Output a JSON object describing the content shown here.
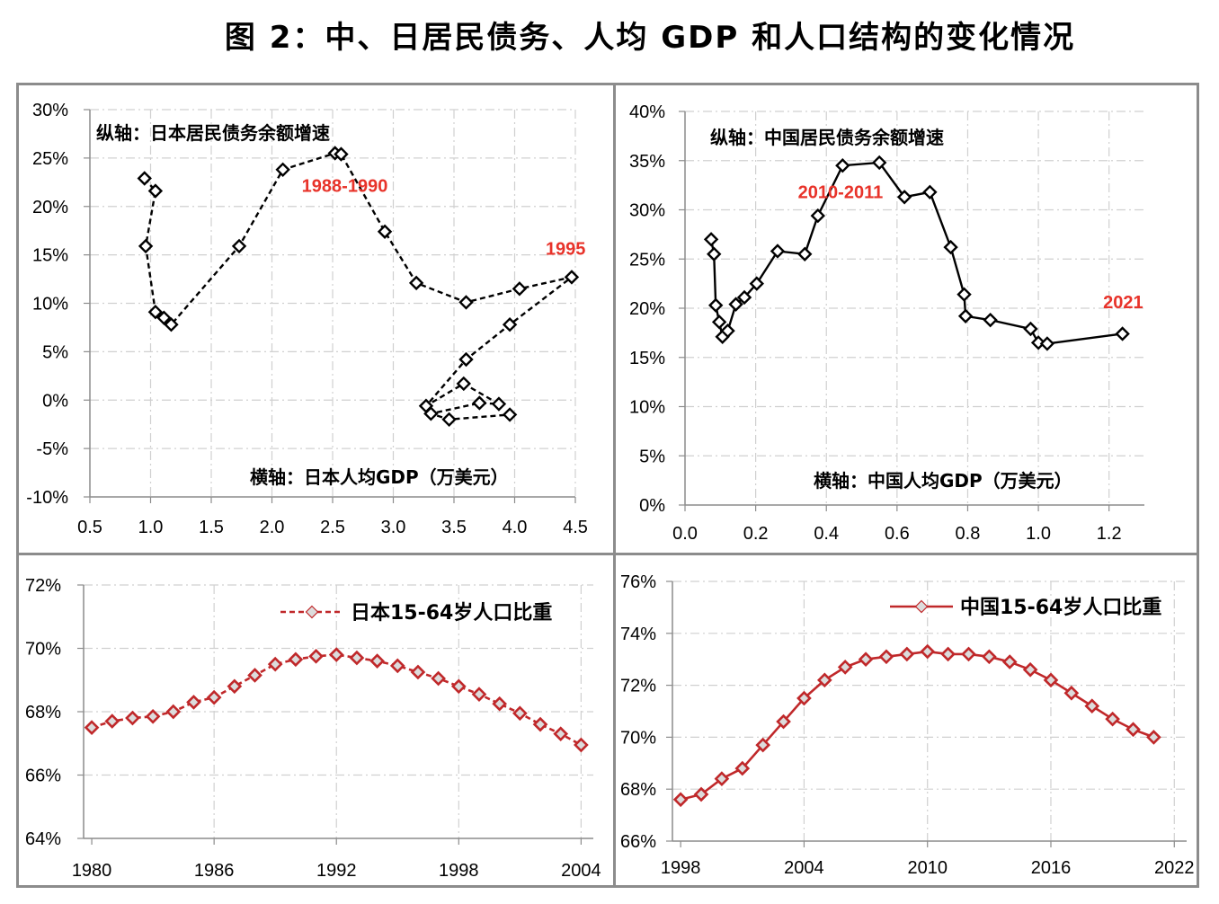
{
  "title": "图 2：中、日居民债务、人均 GDP 和人口结构的变化情况",
  "chart_data": [
    {
      "id": "japan-debt",
      "type": "scatter",
      "line_style": "dashed",
      "color": "#000000",
      "annotation_y": "纵轴：日本居民债务余额增速",
      "annotation_x": "横轴：日本人均GDP（万美元）",
      "labels": [
        {
          "text": "1988-1990",
          "x": 2.6,
          "y": 21.5
        },
        {
          "text": "1995",
          "x": 4.42,
          "y": 15.0
        }
      ],
      "xlim": [
        0.5,
        4.5
      ],
      "xticks": [
        0.5,
        1.0,
        1.5,
        2.0,
        2.5,
        3.0,
        3.5,
        4.0,
        4.5
      ],
      "xtick_labels": [
        "0.5",
        "1.0",
        "1.5",
        "2.0",
        "2.5",
        "3.0",
        "3.5",
        "4.0",
        "4.5"
      ],
      "ylim": [
        -10,
        30
      ],
      "yticks": [
        -10,
        -5,
        0,
        5,
        10,
        15,
        20,
        25,
        30
      ],
      "ytick_labels": [
        "-10%",
        "-5%",
        "0%",
        "5%",
        "10%",
        "15%",
        "20%",
        "25%",
        "30%"
      ],
      "grid": true,
      "points": [
        [
          0.95,
          22.9
        ],
        [
          1.04,
          21.6
        ],
        [
          0.96,
          15.9
        ],
        [
          1.04,
          9.1
        ],
        [
          1.11,
          8.5
        ],
        [
          1.17,
          7.8
        ],
        [
          1.73,
          15.9
        ],
        [
          2.09,
          23.8
        ],
        [
          2.52,
          25.5
        ],
        [
          2.57,
          25.4
        ],
        [
          2.93,
          17.4
        ],
        [
          3.19,
          12.1
        ],
        [
          3.6,
          10.1
        ],
        [
          4.04,
          11.5
        ],
        [
          4.47,
          12.7
        ],
        [
          3.96,
          7.8
        ],
        [
          3.6,
          4.2
        ],
        [
          3.27,
          -0.6
        ],
        [
          3.58,
          1.7
        ],
        [
          3.87,
          -0.4
        ],
        [
          3.71,
          -0.3
        ],
        [
          3.31,
          -1.4
        ],
        [
          3.46,
          -2.0
        ],
        [
          3.96,
          -1.5
        ]
      ]
    },
    {
      "id": "china-debt",
      "type": "scatter",
      "line_style": "solid",
      "color": "#000000",
      "annotation_y": "纵轴：中国居民债务余额增速",
      "annotation_x": "横轴：中国人均GDP（万美元）",
      "labels": [
        {
          "text": "2010-2011",
          "x": 0.44,
          "y": 31.2
        },
        {
          "text": "2021",
          "x": 1.24,
          "y": 20.0
        }
      ],
      "xlim": [
        0.0,
        1.3
      ],
      "xticks": [
        0.0,
        0.2,
        0.4,
        0.6,
        0.8,
        1.0,
        1.2
      ],
      "xtick_labels": [
        "0.0",
        "0.2",
        "0.4",
        "0.6",
        "0.8",
        "1.0",
        "1.2"
      ],
      "ylim": [
        0,
        40
      ],
      "yticks": [
        0,
        5,
        10,
        15,
        20,
        25,
        30,
        35,
        40
      ],
      "ytick_labels": [
        "0%",
        "5%",
        "10%",
        "15%",
        "20%",
        "25%",
        "30%",
        "35%",
        "40%"
      ],
      "grid": true,
      "points": [
        [
          0.074,
          27.0
        ],
        [
          0.082,
          25.5
        ],
        [
          0.087,
          20.3
        ],
        [
          0.097,
          18.6
        ],
        [
          0.106,
          17.1
        ],
        [
          0.121,
          17.7
        ],
        [
          0.144,
          20.4
        ],
        [
          0.168,
          21.1
        ],
        [
          0.203,
          22.5
        ],
        [
          0.262,
          25.8
        ],
        [
          0.339,
          25.5
        ],
        [
          0.376,
          29.4
        ],
        [
          0.446,
          34.5
        ],
        [
          0.55,
          34.8
        ],
        [
          0.621,
          31.3
        ],
        [
          0.693,
          31.8
        ],
        [
          0.752,
          26.2
        ],
        [
          0.79,
          21.4
        ],
        [
          0.794,
          19.2
        ],
        [
          0.864,
          18.8
        ],
        [
          0.978,
          17.9
        ],
        [
          1.0,
          16.5
        ],
        [
          1.025,
          16.4
        ],
        [
          1.238,
          17.4
        ]
      ]
    },
    {
      "id": "japan-pop",
      "type": "line",
      "line_style": "dashed",
      "color": "#c0282a",
      "legend": "日本15-64岁人口比重",
      "legend_position": "top-right",
      "x": [
        1980,
        1981,
        1982,
        1983,
        1984,
        1985,
        1986,
        1987,
        1988,
        1989,
        1990,
        1991,
        1992,
        1993,
        1994,
        1995,
        1996,
        1997,
        1998,
        1999,
        2000,
        2001,
        2002,
        2003,
        2004
      ],
      "values": [
        67.5,
        67.7,
        67.8,
        67.85,
        68.0,
        68.3,
        68.45,
        68.8,
        69.15,
        69.5,
        69.65,
        69.75,
        69.8,
        69.7,
        69.6,
        69.45,
        69.25,
        69.05,
        68.8,
        68.55,
        68.25,
        67.95,
        67.6,
        67.3,
        66.95
      ],
      "xlim": [
        1979.6,
        2004.6
      ],
      "xticks": [
        1980,
        1986,
        1992,
        1998,
        2004
      ],
      "xtick_labels": [
        "1980",
        "1986",
        "1992",
        "1998",
        "2004"
      ],
      "ylim": [
        64,
        72
      ],
      "yticks": [
        64,
        66,
        68,
        70,
        72
      ],
      "ytick_labels": [
        "64%",
        "66%",
        "68%",
        "70%",
        "72%"
      ],
      "grid": true
    },
    {
      "id": "china-pop",
      "type": "line",
      "line_style": "solid",
      "color": "#c0282a",
      "legend": "中国15-64岁人口比重",
      "legend_position": "top-right",
      "x": [
        1998,
        1999,
        2000,
        2001,
        2002,
        2003,
        2004,
        2005,
        2006,
        2007,
        2008,
        2009,
        2010,
        2011,
        2012,
        2013,
        2014,
        2015,
        2016,
        2017,
        2018,
        2019,
        2020,
        2021
      ],
      "values": [
        67.6,
        67.8,
        68.4,
        68.8,
        69.7,
        70.6,
        71.5,
        72.2,
        72.7,
        73.0,
        73.1,
        73.2,
        73.3,
        73.2,
        73.2,
        73.1,
        72.9,
        72.6,
        72.2,
        71.7,
        71.2,
        70.7,
        70.3,
        70.0
      ],
      "xlim": [
        1997.6,
        2022.6
      ],
      "xticks": [
        1998,
        2004,
        2010,
        2016,
        2022
      ],
      "xtick_labels": [
        "1998",
        "2004",
        "2010",
        "2016",
        "2022"
      ],
      "ylim": [
        66,
        76
      ],
      "yticks": [
        66,
        68,
        70,
        72,
        74,
        76
      ],
      "ytick_labels": [
        "66%",
        "68%",
        "70%",
        "72%",
        "74%",
        "76%"
      ],
      "grid": true
    }
  ]
}
